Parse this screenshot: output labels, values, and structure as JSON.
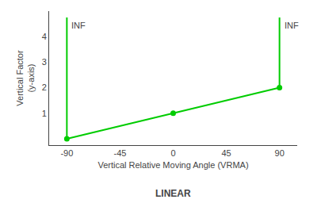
{
  "chart_data": {
    "type": "line",
    "ylabel": "Vertical Factor\n(y-axis)",
    "xlabel": "Vertical Relative Moving Angle (VRMA)",
    "annotations": [
      {
        "text": "INF",
        "x": -90,
        "y": 4.75
      },
      {
        "text": "INF",
        "x": 90,
        "y": 4.75
      },
      {
        "text": "LINEAR"
      }
    ],
    "series": [
      {
        "x": [
          -90,
          0,
          90
        ],
        "values": [
          0,
          1,
          2
        ],
        "color": "#00cc00",
        "marker": "circle"
      },
      {
        "x": [
          -90,
          -90
        ],
        "values": [
          0,
          4.75
        ],
        "color": "#00cc00"
      },
      {
        "x": [
          90,
          90
        ],
        "values": [
          2,
          4.75
        ],
        "color": "#00cc00"
      }
    ],
    "xlim": [
      -105,
      105
    ],
    "xticks": [
      -90,
      -45,
      0,
      45,
      90
    ],
    "ylim": [
      -0.25,
      5.0
    ],
    "yticks": [
      1,
      2,
      3,
      4
    ],
    "grid": false
  }
}
